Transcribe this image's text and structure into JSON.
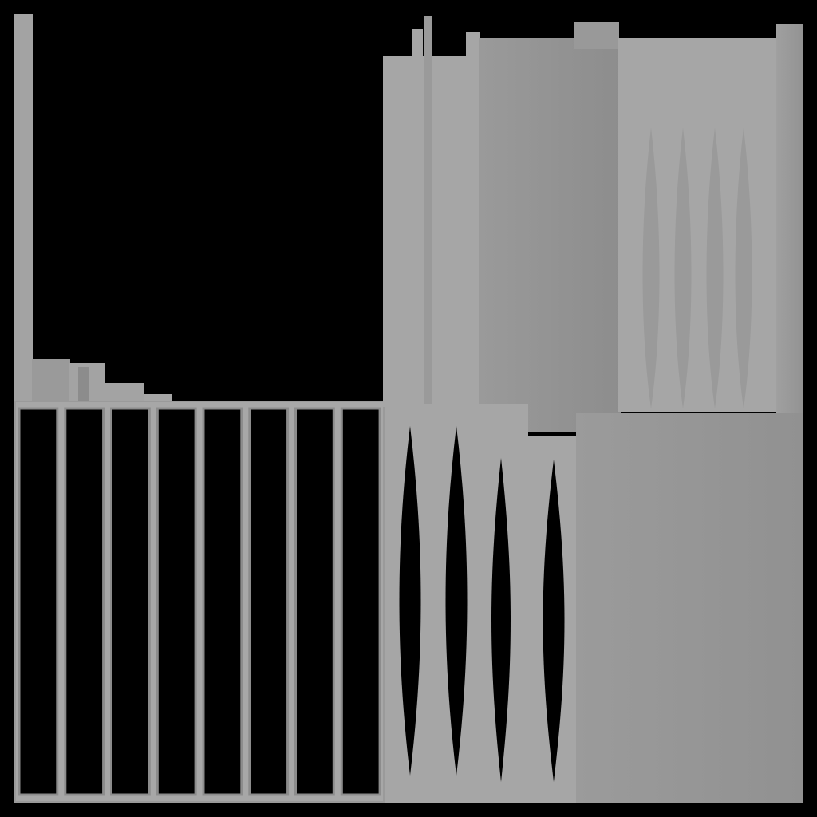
{
  "image": {
    "description_free": true,
    "background_color": "#000000",
    "palette": {
      "light_gray": "#a6a6a6",
      "mid_gray": "#9a9a9a",
      "dark_gray": "#8f8f8f",
      "panel_gray": "#939393"
    },
    "regions": {
      "left_column_strip": {
        "shade": "light_gray"
      },
      "left_grid_panel": {
        "cells": 8,
        "shade": "mid_gray"
      },
      "upper_right_bars": {
        "count": 4,
        "shade": "light_gray"
      },
      "upper_right_block": {
        "shade": "dark_gray"
      },
      "upper_right_arches": {
        "count": 4,
        "shade": "light_gray"
      },
      "upper_right_edge_bar": {
        "shade": "dark_gray"
      },
      "lower_middle_arches": {
        "count": 4,
        "shade": "light_gray"
      },
      "lower_right_block": {
        "shade": "panel_gray"
      }
    }
  }
}
